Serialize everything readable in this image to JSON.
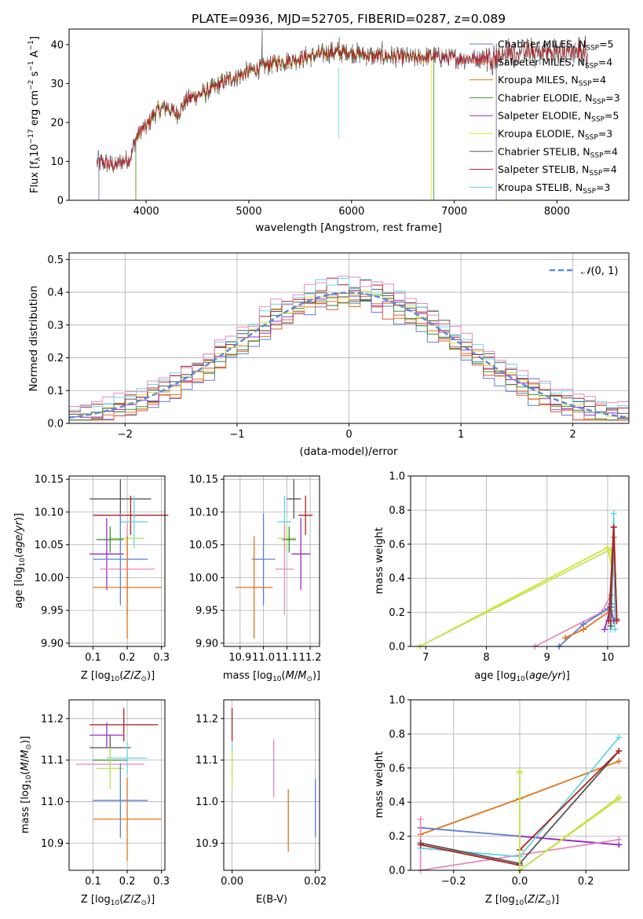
{
  "figure_title": "PLATE=0936, MJD=52705, FIBERID=0287, z=0.089",
  "colors": {
    "Chabrier MILES": "#5b7fd1",
    "Salpeter MILES": "#e8553a",
    "Kroupa MILES": "#e0761c",
    "Chabrier ELODIE": "#3c8d3c",
    "Salpeter ELODIE": "#9a2bc8",
    "Kroupa ELODIE": "#d8e02a",
    "Chabrier STELIB": "#555555",
    "Salpeter STELIB": "#b01f1f",
    "Kroupa STELIB": "#62d6e8",
    "Pink": "#e889c0",
    "Lime": "#b9e85a",
    "Normal": "#5b8bd8"
  },
  "chart_data": [
    {
      "id": "spectrum",
      "type": "line",
      "title": "PLATE=0936, MJD=52705, FIBERID=0287, z=0.089",
      "xlabel": "wavelength [Angstrom, rest frame]",
      "ylabel": "Flux [f_λ 10^-17 erg cm^-2 s^-1 A^-1]",
      "xlim": [
        3250,
        8700
      ],
      "ylim": [
        0,
        44
      ],
      "xticks": [
        4000,
        5000,
        6000,
        7000,
        8000
      ],
      "yticks": [
        0,
        10,
        20,
        30,
        40
      ],
      "grid": false,
      "legend_position": "upper right",
      "legend": [
        "Chabrier MILES, N_SSP=5",
        "Salpeter MILES, N_SSP=4",
        "Kroupa MILES, N_SSP=4",
        "Chabrier ELODIE, N_SSP=3",
        "Salpeter ELODIE, N_SSP=5",
        "Kroupa ELODIE, N_SSP=3",
        "Chabrier STELIB, N_SSP=4",
        "Salpeter STELIB, N_SSP=4",
        "Kroupa STELIB, N_SSP=3"
      ],
      "continuum": {
        "x": [
          3520,
          3700,
          3850,
          3900,
          3950,
          4000,
          4100,
          4200,
          4300,
          4400,
          4600,
          4800,
          5000,
          5200,
          5400,
          5600,
          5800,
          6000,
          6200,
          6400,
          6600,
          6800,
          7000,
          7200,
          7400,
          7600
        ],
        "y": [
          10,
          9,
          11,
          16,
          18,
          19,
          23,
          24,
          22,
          26,
          28,
          31,
          33,
          35,
          36,
          37,
          38,
          38,
          37,
          37,
          36.5,
          37,
          36.5,
          36.5,
          37,
          38
        ]
      }
    },
    {
      "id": "residuals",
      "type": "histogram",
      "xlabel": "(data-model)/error",
      "ylabel": "Normed distribution",
      "xlim": [
        -2.5,
        2.5
      ],
      "ylim": [
        0,
        0.52
      ],
      "xticks": [
        -2,
        -1,
        0,
        1,
        2
      ],
      "yticks": [
        0.0,
        0.1,
        0.2,
        0.3,
        0.4,
        0.5
      ],
      "grid": true,
      "legend": [
        "𝒩(0,1)"
      ],
      "bin_width": 0.1
    },
    {
      "id": "age-vs-Z",
      "type": "errorbar",
      "xlabel": "Z [log10(Z/Z☉)]",
      "ylabel": "age [log10(age/yr)]",
      "xlim": [
        0.03,
        0.31
      ],
      "ylim": [
        9.895,
        10.155
      ],
      "xticks": [
        0.1,
        0.2,
        0.3
      ],
      "yticks": [
        9.9,
        9.95,
        10.0,
        10.05,
        10.1,
        10.15
      ],
      "grid": true,
      "points": [
        {
          "c": "Chabrier STELIB",
          "x": 0.18,
          "xe": 0.09,
          "y": 10.12,
          "ye": 0.03
        },
        {
          "c": "Salpeter STELIB",
          "x": 0.21,
          "xe": 0.11,
          "y": 10.095,
          "ye": 0.03
        },
        {
          "c": "Kroupa STELIB",
          "x": 0.22,
          "xe": 0.04,
          "y": 10.085,
          "ye": 0.04
        },
        {
          "c": "Lime",
          "x": 0.2,
          "xe": 0.05,
          "y": 10.06,
          "ye": 0.02
        },
        {
          "c": "Chabrier ELODIE",
          "x": 0.15,
          "xe": 0.04,
          "y": 10.058,
          "ye": 0.02
        },
        {
          "c": "Salpeter ELODIE",
          "x": 0.14,
          "xe": 0.05,
          "y": 10.036,
          "ye": 0.055
        },
        {
          "c": "Chabrier MILES",
          "x": 0.18,
          "xe": 0.08,
          "y": 10.028,
          "ye": 0.07
        },
        {
          "c": "Pink",
          "x": 0.2,
          "xe": 0.08,
          "y": 10.013,
          "ye": 0.07
        },
        {
          "c": "Kroupa MILES",
          "x": 0.2,
          "xe": 0.1,
          "y": 9.985,
          "ye": 0.078
        }
      ]
    },
    {
      "id": "age-vs-mass",
      "type": "errorbar",
      "xlabel": "mass [log10(M/M☉)]",
      "ylabel": "",
      "xlim": [
        10.83,
        11.24
      ],
      "ylim": [
        9.895,
        10.155
      ],
      "xticks": [
        10.9,
        11.0,
        11.1,
        11.2
      ],
      "yticks": [
        9.9,
        9.95,
        10.0,
        10.05,
        10.1,
        10.15
      ],
      "grid": true,
      "points": [
        {
          "c": "Chabrier STELIB",
          "x": 11.13,
          "xe": 0.03,
          "y": 10.12,
          "ye": 0.03
        },
        {
          "c": "Salpeter STELIB",
          "x": 11.18,
          "xe": 0.03,
          "y": 10.095,
          "ye": 0.03
        },
        {
          "c": "Kroupa STELIB",
          "x": 11.09,
          "xe": 0.03,
          "y": 10.085,
          "ye": 0.04
        },
        {
          "c": "Lime",
          "x": 11.1,
          "xe": 0.04,
          "y": 10.06,
          "ye": 0.02
        },
        {
          "c": "Chabrier ELODIE",
          "x": 11.11,
          "xe": 0.03,
          "y": 10.058,
          "ye": 0.02
        },
        {
          "c": "Salpeter ELODIE",
          "x": 11.16,
          "xe": 0.04,
          "y": 10.036,
          "ye": 0.055
        },
        {
          "c": "Chabrier MILES",
          "x": 11.0,
          "xe": 0.05,
          "y": 10.028,
          "ye": 0.07
        },
        {
          "c": "Pink",
          "x": 11.09,
          "xe": 0.04,
          "y": 10.013,
          "ye": 0.07
        },
        {
          "c": "Kroupa MILES",
          "x": 10.96,
          "xe": 0.08,
          "y": 9.985,
          "ye": 0.078
        }
      ]
    },
    {
      "id": "weight-vs-age",
      "type": "line",
      "xlabel": "age [log10(age/yr)]",
      "ylabel": "mass weight",
      "xlim": [
        6.75,
        10.35
      ],
      "ylim": [
        0,
        1.0
      ],
      "xticks": [
        7,
        8,
        9,
        10
      ],
      "yticks": [
        0.0,
        0.2,
        0.4,
        0.6,
        0.8,
        1.0
      ],
      "grid": true,
      "series": [
        {
          "c": "Kroupa ELODIE",
          "x": [
            6.9,
            10.0,
            10.1
          ],
          "y": [
            0.0,
            0.58,
            0.42
          ]
        },
        {
          "c": "Lime",
          "x": [
            6.9,
            10.05,
            10.1
          ],
          "y": [
            0.0,
            0.57,
            0.42
          ]
        },
        {
          "c": "Pink",
          "x": [
            8.8,
            9.9,
            10.05
          ],
          "y": [
            0.0,
            0.2,
            0.3
          ]
        },
        {
          "c": "Chabrier MILES",
          "x": [
            9.2,
            9.6,
            10.0,
            10.05
          ],
          "y": [
            0.0,
            0.13,
            0.22,
            0.25
          ]
        },
        {
          "c": "Kroupa MILES",
          "x": [
            9.3,
            9.6,
            10.05,
            10.1
          ],
          "y": [
            0.05,
            0.1,
            0.21,
            0.64
          ]
        },
        {
          "c": "Salpeter ELODIE",
          "x": [
            9.95,
            10.05,
            10.1
          ],
          "y": [
            0.1,
            0.23,
            0.15
          ]
        },
        {
          "c": "Kroupa STELIB",
          "x": [
            10.05,
            10.1,
            10.12
          ],
          "y": [
            0.1,
            0.78,
            0.1
          ]
        },
        {
          "c": "Chabrier STELIB",
          "x": [
            10.05,
            10.1,
            10.15
          ],
          "y": [
            0.12,
            0.7,
            0.16
          ]
        },
        {
          "c": "Salpeter STELIB",
          "x": [
            10.02,
            10.1,
            10.15
          ],
          "y": [
            0.15,
            0.7,
            0.15
          ]
        }
      ]
    },
    {
      "id": "mass-vs-Z",
      "type": "errorbar",
      "xlabel": "Z [log10(Z/Z☉)]",
      "ylabel": "mass [log10(M/M☉)]",
      "xlim": [
        0.03,
        0.31
      ],
      "ylim": [
        10.835,
        11.245
      ],
      "xticks": [
        0.1,
        0.2,
        0.3
      ],
      "yticks": [
        10.9,
        11.0,
        11.1,
        11.2
      ],
      "grid": true,
      "points": [
        {
          "c": "Salpeter STELIB",
          "x": 0.19,
          "xe": 0.1,
          "y": 11.185,
          "ye": 0.04
        },
        {
          "c": "Salpeter ELODIE",
          "x": 0.14,
          "xe": 0.05,
          "y": 11.16,
          "ye": 0.03
        },
        {
          "c": "Chabrier STELIB",
          "x": 0.15,
          "xe": 0.06,
          "y": 11.13,
          "ye": 0.03
        },
        {
          "c": "Kroupa STELIB",
          "x": 0.2,
          "xe": 0.06,
          "y": 11.105,
          "ye": 0.04
        },
        {
          "c": "Chabrier ELODIE",
          "x": 0.15,
          "xe": 0.05,
          "y": 11.1,
          "ye": 0.03
        },
        {
          "c": "Pink",
          "x": 0.15,
          "xe": 0.1,
          "y": 11.09,
          "ye": 0.03
        },
        {
          "c": "Lime",
          "x": 0.15,
          "xe": 0.04,
          "y": 11.08,
          "ye": 0.05
        },
        {
          "c": "Chabrier MILES",
          "x": 0.18,
          "xe": 0.08,
          "y": 11.003,
          "ye": 0.09
        },
        {
          "c": "Kroupa MILES",
          "x": 0.2,
          "xe": 0.1,
          "y": 10.958,
          "ye": 0.1
        }
      ]
    },
    {
      "id": "mass-vs-EBV",
      "type": "errorbar",
      "xlabel": "E(B-V)",
      "ylabel": "",
      "xlim": [
        -0.002,
        0.021
      ],
      "ylim": [
        10.835,
        11.245
      ],
      "xticks": [
        0.0,
        0.02
      ],
      "yticks": [
        10.9,
        11.0,
        11.1,
        11.2
      ],
      "grid": true,
      "points": [
        {
          "c": "Salpeter STELIB",
          "x": 0.0,
          "xe": 0,
          "y": 11.185,
          "ye": 0.04
        },
        {
          "c": "Kroupa STELIB",
          "x": 0.0,
          "xe": 0,
          "y": 11.1,
          "ye": 0.04
        },
        {
          "c": "Lime",
          "x": 0.0,
          "xe": 0,
          "y": 11.08,
          "ye": 0.05
        },
        {
          "c": "Pink",
          "x": 0.01,
          "xe": 0,
          "y": 11.08,
          "ye": 0.07
        },
        {
          "c": "Kroupa MILES",
          "x": 0.0135,
          "xe": 0,
          "y": 10.955,
          "ye": 0.075
        },
        {
          "c": "Chabrier MILES",
          "x": 0.02,
          "xe": 0,
          "y": 10.985,
          "ye": 0.07
        }
      ]
    },
    {
      "id": "weight-vs-Z",
      "type": "line",
      "xlabel": "Z [log10(Z/Z☉)]",
      "ylabel": "mass weight",
      "xlim": [
        -0.33,
        0.33
      ],
      "ylim": [
        0,
        1.0
      ],
      "xticks": [
        -0.2,
        0.0,
        0.2
      ],
      "yticks": [
        0.0,
        0.2,
        0.4,
        0.6,
        0.8,
        1.0
      ],
      "grid": true,
      "series": [
        {
          "c": "Kroupa MILES",
          "x": [
            -0.3,
            0.0,
            0.3
          ],
          "y": [
            0.21,
            0.42,
            0.64
          ]
        },
        {
          "c": "Chabrier MILES",
          "x": [
            -0.3,
            0.0,
            0.3
          ],
          "y": [
            0.25,
            0.2,
            0.15
          ]
        },
        {
          "c": "Salpeter ELODIE",
          "x": [
            0.0,
            0.3
          ],
          "y": [
            0.2,
            0.15
          ]
        },
        {
          "c": "Pink",
          "x": [
            -0.3,
            -0.3,
            0.3
          ],
          "y": [
            0.3,
            0.0,
            0.18
          ]
        },
        {
          "c": "Kroupa STELIB",
          "x": [
            -0.3,
            0.0,
            0.3
          ],
          "y": [
            0.13,
            0.08,
            0.78
          ]
        },
        {
          "c": "Chabrier STELIB",
          "x": [
            -0.3,
            0.0,
            0.3
          ],
          "y": [
            0.16,
            0.04,
            0.7
          ]
        },
        {
          "c": "Salpeter STELIB",
          "x": [
            -0.3,
            0.0,
            0.0,
            0.3
          ],
          "y": [
            0.15,
            0.03,
            0.12,
            0.7
          ]
        },
        {
          "c": "Kroupa ELODIE",
          "x": [
            0.0,
            0.0,
            0.3
          ],
          "y": [
            0.58,
            0.0,
            0.42
          ]
        },
        {
          "c": "Lime",
          "x": [
            0.0,
            0.0,
            0.3
          ],
          "y": [
            0.57,
            0.0,
            0.43
          ]
        }
      ]
    }
  ]
}
